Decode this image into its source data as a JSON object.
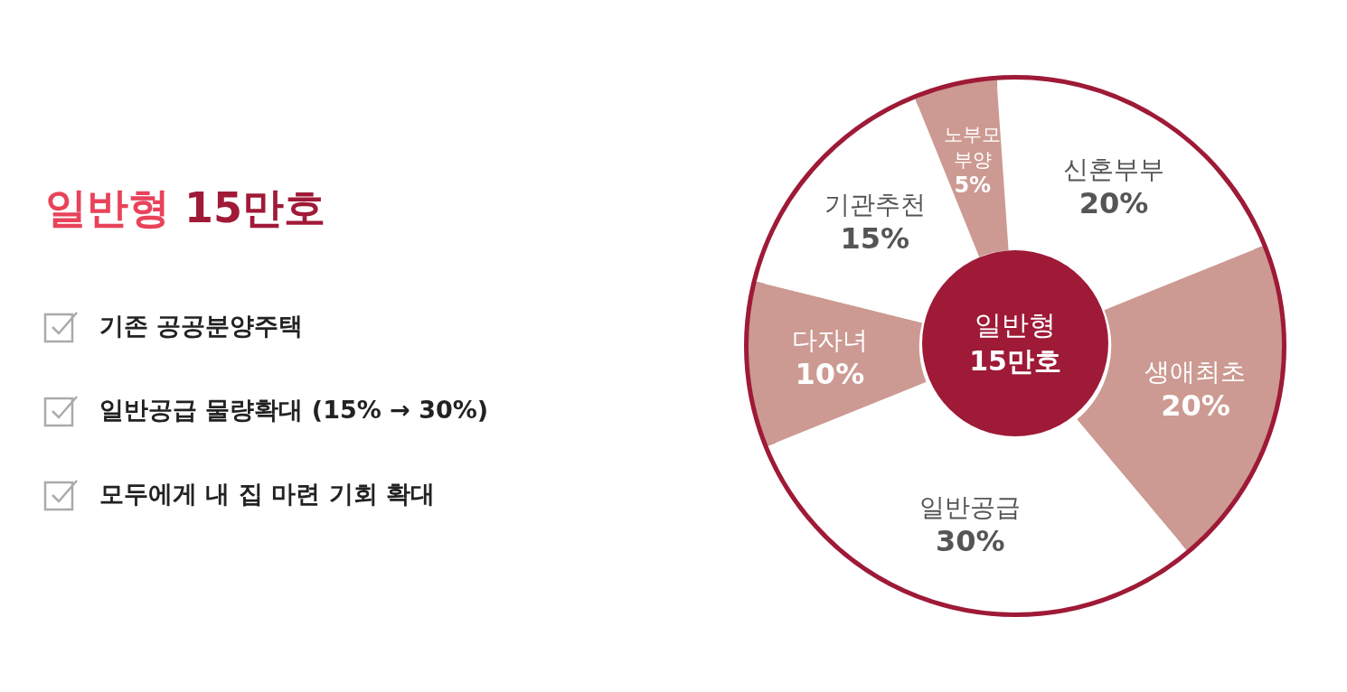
{
  "chart_data": {
    "type": "donut",
    "title": "일반형 15만호",
    "categories": [
      "신혼부부",
      "생애최초",
      "일반공급",
      "다자녀",
      "기관추천",
      "노부모부양"
    ],
    "values": [
      20,
      20,
      30,
      10,
      15,
      5
    ],
    "value_labels": [
      "20%",
      "20%",
      "30%",
      "10%",
      "15%",
      "5%"
    ],
    "colors": [
      "#ffffff",
      "#cc9a92",
      "#ffffff",
      "#cc9a92",
      "#ffffff",
      "#cc9a92"
    ],
    "annotations": [
      "기존 공공분양주택",
      "일반공급 물량확대 (15% → 30%)",
      "모두에게 내 집 마련 기회 확대",
      "일반형 15만호"
    ],
    "legend": false
  }
}
